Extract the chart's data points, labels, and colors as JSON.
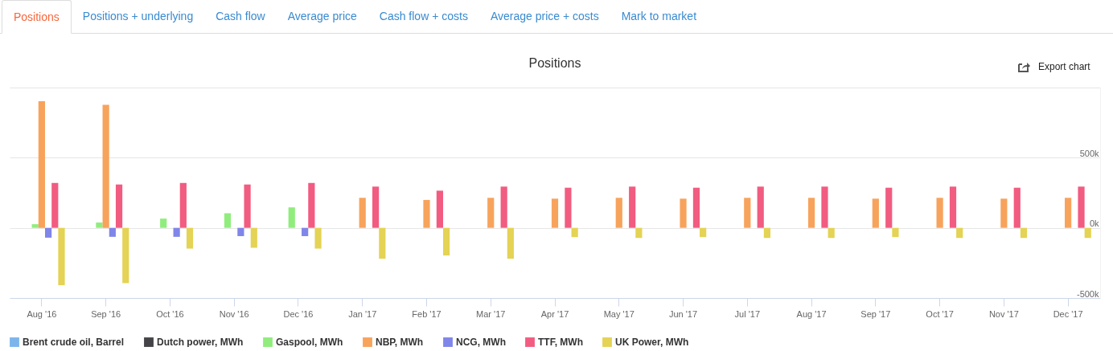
{
  "chart_data": {
    "type": "bar",
    "title": "Positions",
    "annotations": [
      "Positions",
      "Positions + underlying",
      "Cash flow",
      "Average price",
      "Cash flow + costs",
      "Average price + costs",
      "Mark to market",
      "Export chart"
    ],
    "categories": [
      "Aug '16",
      "Sep '16",
      "Oct '16",
      "Nov '16",
      "Dec '16",
      "Jan '17",
      "Feb '17",
      "Mar '17",
      "Apr '17",
      "May '17",
      "Jun '17",
      "Jul '17",
      "Aug '17",
      "Sep '17",
      "Oct '17",
      "Nov '17",
      "Dec '17"
    ],
    "series": [
      {
        "name": "Brent crude oil, Barrel",
        "color": "#7cb5ec",
        "values": [
          null,
          null,
          null,
          null,
          null,
          null,
          null,
          null,
          null,
          null,
          null,
          null,
          null,
          null,
          null,
          null,
          null
        ]
      },
      {
        "name": "Dutch power, MWh",
        "color": "#434348",
        "values": [
          null,
          null,
          null,
          null,
          null,
          null,
          null,
          null,
          null,
          null,
          null,
          null,
          null,
          null,
          null,
          null,
          null
        ]
      },
      {
        "name": "Gaspool, MWh",
        "color": "#90ed7d",
        "values": [
          26000,
          38000,
          66000,
          104000,
          146000,
          null,
          null,
          null,
          null,
          null,
          null,
          null,
          null,
          null,
          null,
          null,
          null
        ]
      },
      {
        "name": "NBP, MWh",
        "color": "#f7a35c",
        "values": [
          903000,
          877000,
          null,
          null,
          null,
          214000,
          199000,
          214000,
          208000,
          214000,
          208000,
          214000,
          214000,
          208000,
          214000,
          208000,
          214000
        ]
      },
      {
        "name": "NCG, MWh",
        "color": "#8085e9",
        "values": [
          -70000,
          -64000,
          -64000,
          -59000,
          -59000,
          null,
          null,
          null,
          null,
          null,
          null,
          null,
          null,
          null,
          null,
          null,
          null
        ]
      },
      {
        "name": "TTF, MWh",
        "color": "#f15c80",
        "values": [
          320000,
          309000,
          320000,
          309000,
          320000,
          294000,
          265000,
          294000,
          286000,
          294000,
          286000,
          294000,
          294000,
          286000,
          294000,
          286000,
          294000
        ]
      },
      {
        "name": "UK Power, MWh",
        "color": "#e4d354",
        "values": [
          -409000,
          -394000,
          -148000,
          -142000,
          -148000,
          -220000,
          -197000,
          -220000,
          -66000,
          -72000,
          -66000,
          -72000,
          -72000,
          -66000,
          -72000,
          -72000,
          -72000
        ]
      }
    ],
    "ylim": [
      -500000,
      1000000
    ],
    "yticks": [
      {
        "value": -500000,
        "label": "-500k"
      },
      {
        "value": 0,
        "label": "0k"
      },
      {
        "value": 500000,
        "label": "500k"
      },
      {
        "value": 1000000,
        "label": null
      }
    ],
    "grid": "y",
    "legend": "bottom"
  }
}
